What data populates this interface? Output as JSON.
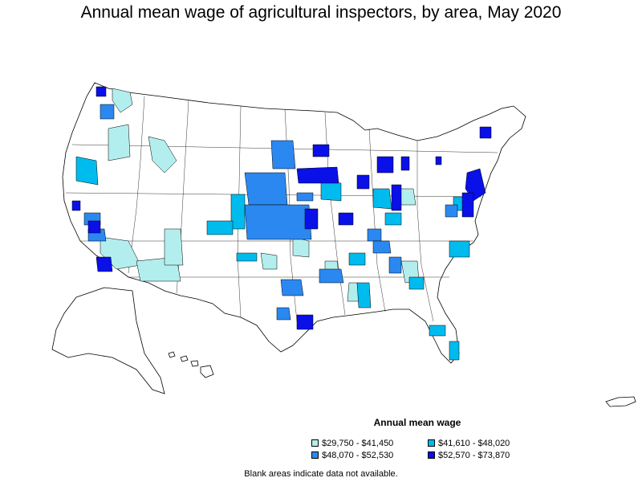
{
  "title": "Annual mean wage of agricultural inspectors, by area, May 2020",
  "legend": {
    "title": "Annual mean wage",
    "items": [
      {
        "label": "$29,750 - $41,450",
        "color": "#b3eeee"
      },
      {
        "label": "$41,610 - $48,020",
        "color": "#00bbee"
      },
      {
        "label": "$48,070 - $52,530",
        "color": "#2b88f0"
      },
      {
        "label": "$52,570 - $73,870",
        "color": "#0a10e8"
      }
    ]
  },
  "footnote": "Blank areas indicate data not available."
}
